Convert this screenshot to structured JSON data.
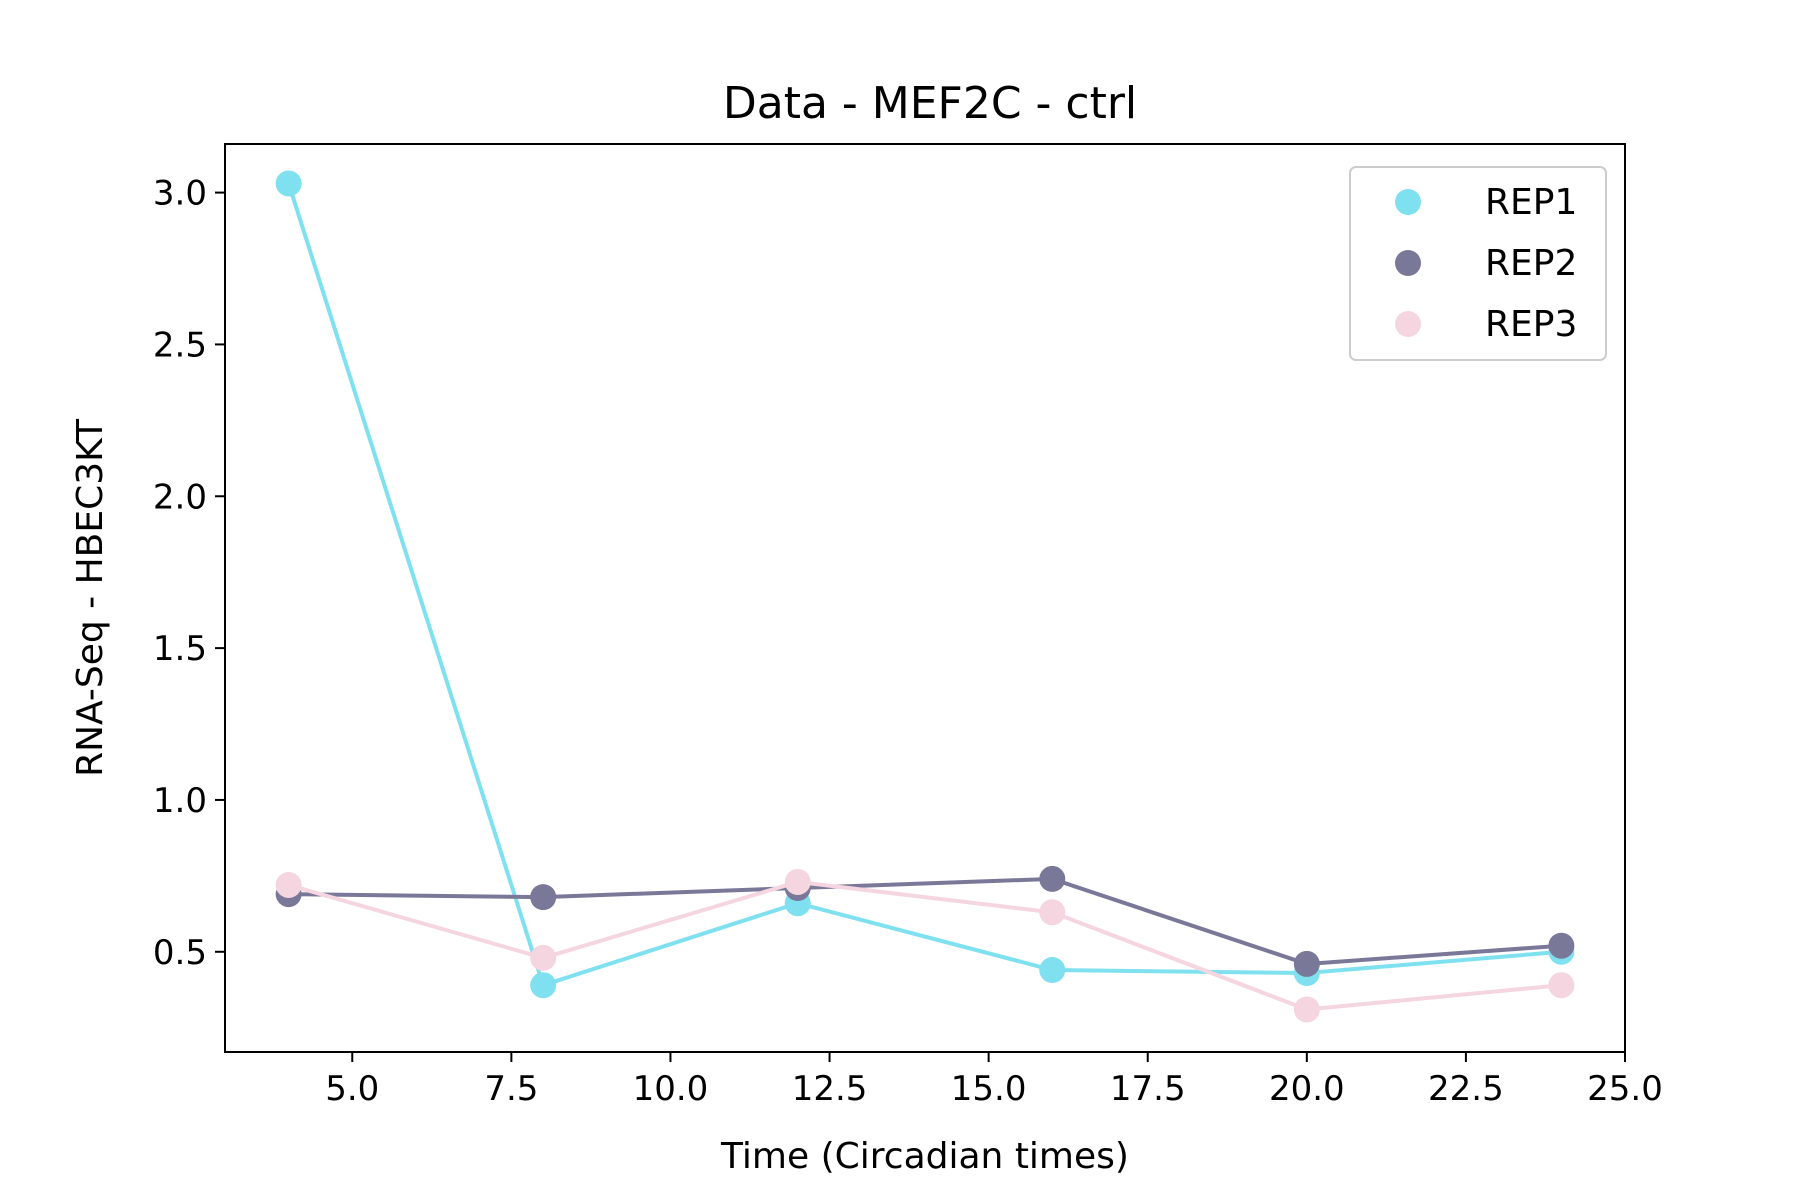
{
  "chart_data": {
    "type": "line",
    "title": "Data - MEF2C - ctrl",
    "xlabel": "Time (Circadian times)",
    "ylabel": "RNA-Seq - HBEC3KT",
    "xlim": [
      3.0,
      25.0
    ],
    "ylim": [
      0.17,
      3.16
    ],
    "xticks": [
      5.0,
      7.5,
      10.0,
      12.5,
      15.0,
      17.5,
      20.0,
      22.5,
      25.0
    ],
    "xtick_labels": [
      "5.0",
      "7.5",
      "10.0",
      "12.5",
      "15.0",
      "17.5",
      "20.0",
      "22.5",
      "25.0"
    ],
    "yticks": [
      0.5,
      1.0,
      1.5,
      2.0,
      2.5,
      3.0
    ],
    "ytick_labels": [
      "0.5",
      "1.0",
      "1.5",
      "2.0",
      "2.5",
      "3.0"
    ],
    "grid": false,
    "legend_position": "top-right",
    "x": [
      4,
      8,
      12,
      16,
      20,
      24
    ],
    "series": [
      {
        "name": "REP1",
        "color": "#7fe0f0",
        "values": [
          3.03,
          0.39,
          0.66,
          0.44,
          0.43,
          0.5
        ]
      },
      {
        "name": "REP2",
        "color": "#7a7898",
        "values": [
          0.69,
          0.68,
          0.71,
          0.74,
          0.46,
          0.52
        ]
      },
      {
        "name": "REP3",
        "color": "#f5d5e0",
        "values": [
          0.72,
          0.48,
          0.73,
          0.63,
          0.31,
          0.39
        ]
      }
    ]
  }
}
